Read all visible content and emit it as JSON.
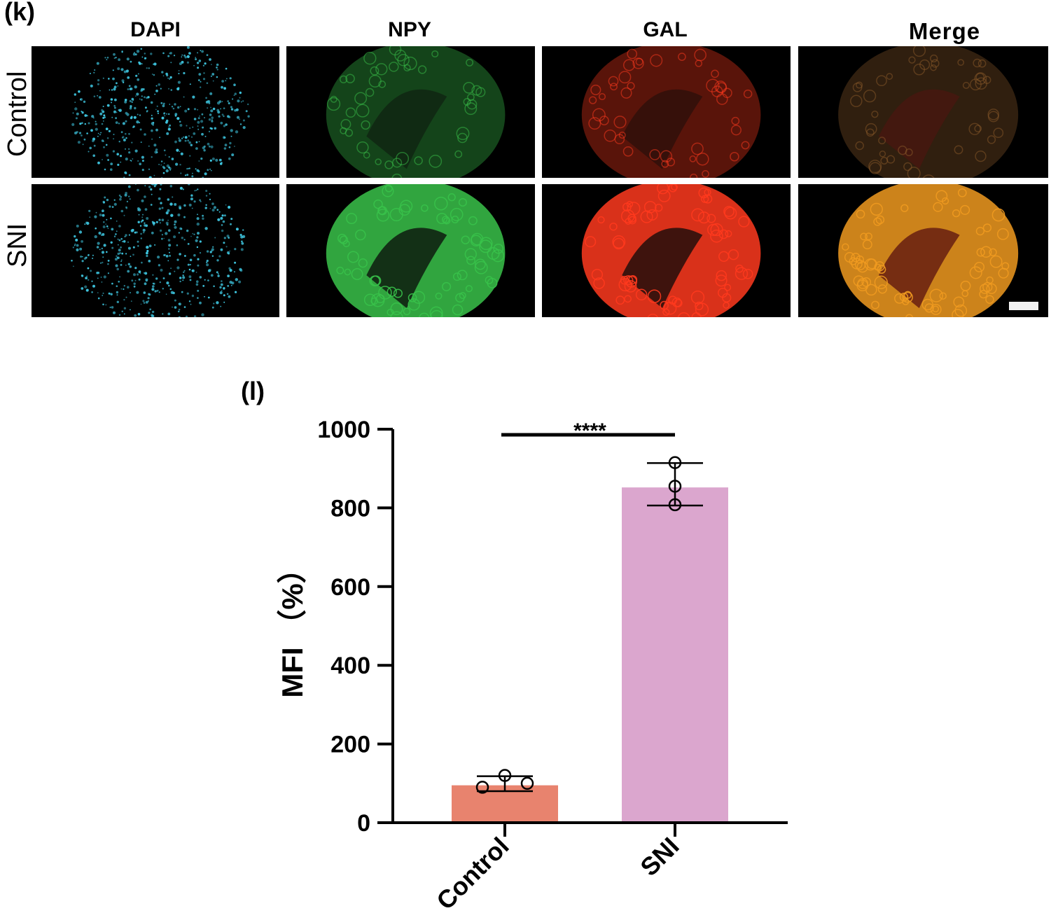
{
  "figure": {
    "panel_k_label": "(k)",
    "panel_l_label": "(l)",
    "columns": [
      "DAPI",
      "NPY",
      "GAL",
      "Merge"
    ],
    "rows": [
      "Control",
      "SNI"
    ],
    "colors": {
      "dapi": "#3ec6e0",
      "npy": "#39c24a",
      "gal": "#ff3a1e",
      "merge_control": "#8a5a2a",
      "merge_sni": "#f09a20",
      "scale_bar": "#f2f2f2"
    }
  },
  "chart_data": {
    "type": "bar",
    "title": "",
    "categories": [
      "Control",
      "SNI"
    ],
    "values": [
      95,
      852
    ],
    "error": [
      {
        "low": 80,
        "high": 118
      },
      {
        "low": 806,
        "high": 914
      }
    ],
    "points": [
      [
        90,
        120,
        100
      ],
      [
        808,
        855,
        915
      ]
    ],
    "bar_colors": [
      "#e8836e",
      "#dba6ce"
    ],
    "xlabel": "",
    "ylabel": "MFI （%）",
    "ylim": [
      0,
      1000
    ],
    "yticks": [
      0,
      200,
      400,
      600,
      800,
      1000
    ],
    "significance": {
      "label": "****",
      "between": [
        "Control",
        "SNI"
      ]
    },
    "grid": false,
    "legend": "none"
  }
}
